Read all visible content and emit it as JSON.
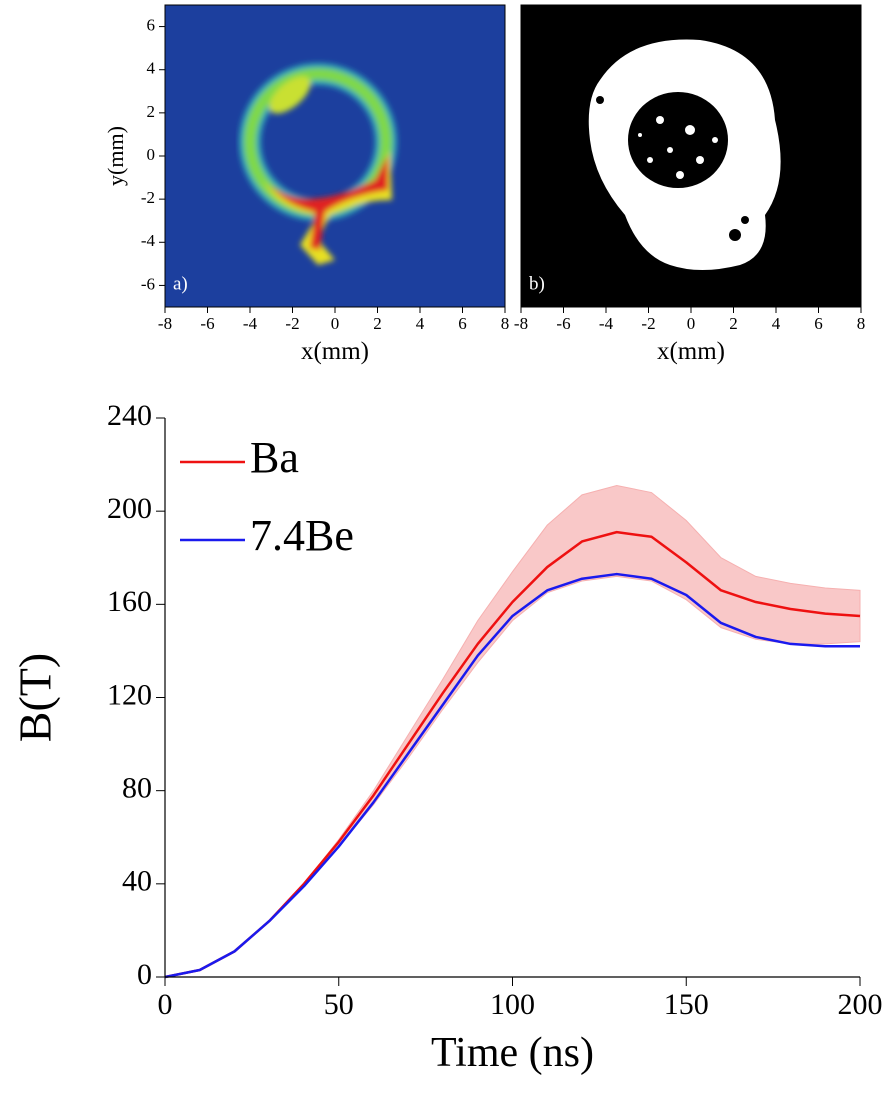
{
  "chart_data": [
    {
      "type": "image",
      "panel_label": "a)",
      "xlabel": "x(mm)",
      "ylabel": "y(mm)",
      "xlim": [
        -8,
        8
      ],
      "ylim": [
        -7,
        7
      ],
      "xticks": [
        -8,
        -6,
        -4,
        -2,
        0,
        2,
        4,
        6,
        8
      ],
      "yticks": [
        -6,
        -4,
        -2,
        0,
        2,
        4,
        6
      ]
    },
    {
      "type": "image",
      "panel_label": "b)",
      "xlabel": "x(mm)",
      "xlim": [
        -8,
        8
      ],
      "ylim": [
        -7,
        7
      ],
      "xticks": [
        -8,
        -6,
        -4,
        -2,
        0,
        2,
        4,
        6,
        8
      ]
    },
    {
      "type": "line",
      "xlabel": "Time (ns)",
      "ylabel": "B(T)",
      "xlim": [
        0,
        200
      ],
      "ylim": [
        0,
        240
      ],
      "xticks": [
        0,
        50,
        100,
        150,
        200
      ],
      "yticks": [
        0,
        40,
        80,
        120,
        160,
        200,
        240
      ],
      "legend": "upper left",
      "x": [
        0,
        10,
        20,
        30,
        40,
        50,
        60,
        70,
        80,
        90,
        100,
        110,
        120,
        130,
        140,
        150,
        160,
        170,
        180,
        190,
        200
      ],
      "series": [
        {
          "name": "Ba",
          "color": "#ee1111",
          "band_color": "#f6b0b0",
          "values": [
            0,
            3,
            11,
            24,
            40,
            58,
            78,
            100,
            122,
            143,
            161,
            176,
            187,
            191,
            189,
            178,
            166,
            161,
            158,
            156,
            155
          ],
          "band_upper": [
            0,
            3,
            11,
            24,
            40,
            59,
            80,
            104,
            128,
            153,
            174,
            194,
            207,
            211,
            208,
            196,
            180,
            172,
            169,
            167,
            166
          ],
          "band_lower": [
            0,
            3,
            11,
            24,
            39,
            56,
            74,
            94,
            115,
            135,
            153,
            165,
            170,
            172,
            170,
            162,
            150,
            145,
            143,
            143,
            144
          ]
        },
        {
          "name": "7.4Be",
          "color": "#1a1aee",
          "values": [
            0,
            3,
            11,
            24,
            39,
            56,
            75,
            96,
            117,
            138,
            155,
            166,
            171,
            173,
            171,
            164,
            152,
            146,
            143,
            142,
            142
          ]
        }
      ]
    }
  ]
}
